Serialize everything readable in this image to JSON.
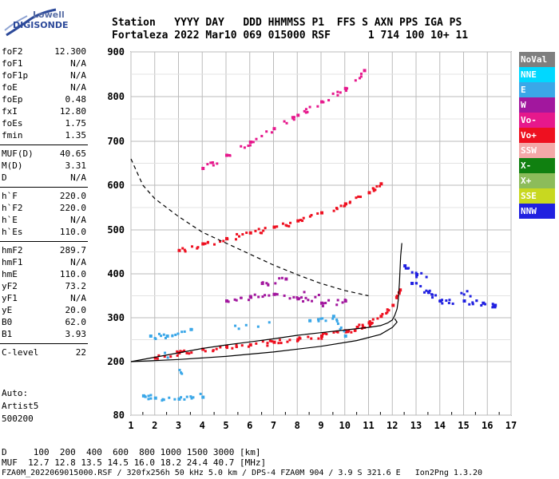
{
  "logo": {
    "line1": "Lowell",
    "line2": "DIGISONDE"
  },
  "header": {
    "line1": "Station   YYYY DAY   DDD HHMMSS P1  FFS S AXN PPS IGA PS",
    "line2": "Fortaleza 2022 Mar10 069 015000 RSF      1 714 100 10+ 11"
  },
  "params": [
    {
      "key": "foF2",
      "value": "12.300"
    },
    {
      "key": "foF1",
      "value": "N/A"
    },
    {
      "key": "foF1p",
      "value": "N/A"
    },
    {
      "key": "foE",
      "value": "N/A"
    },
    {
      "key": "foEp",
      "value": "0.48"
    },
    {
      "key": "fxI",
      "value": "12.80"
    },
    {
      "key": "foEs",
      "value": "1.75"
    },
    {
      "key": "fmin",
      "value": "1.35"
    },
    {
      "key": "MUF(D)",
      "value": "40.65"
    },
    {
      "key": "M(D)",
      "value": "3.31"
    },
    {
      "key": "D",
      "value": "N/A"
    },
    {
      "key": "h`F",
      "value": "220.0"
    },
    {
      "key": "h`F2",
      "value": "220.0"
    },
    {
      "key": "h`E",
      "value": "N/A"
    },
    {
      "key": "h`Es",
      "value": "110.0"
    },
    {
      "key": "hmF2",
      "value": "289.7"
    },
    {
      "key": "hmF1",
      "value": "N/A"
    },
    {
      "key": "hmE",
      "value": "110.0"
    },
    {
      "key": "yF2",
      "value": "73.2"
    },
    {
      "key": "yF1",
      "value": "N/A"
    },
    {
      "key": "yE",
      "value": "20.0"
    },
    {
      "key": "B0",
      "value": "62.0"
    },
    {
      "key": "B1",
      "value": "3.93"
    },
    {
      "key": "C-level",
      "value": "22"
    }
  ],
  "auto": {
    "line1": "Auto:",
    "line2": "Artist5",
    "line3": "500200"
  },
  "legend": [
    {
      "label": "NoVal",
      "bg": "#7f7f7f",
      "fg": "#ffffff"
    },
    {
      "label": "NNE",
      "bg": "#00d8ff",
      "fg": "#ffffff"
    },
    {
      "label": "E",
      "bg": "#3aa7e8",
      "fg": "#ffffff"
    },
    {
      "label": "W",
      "bg": "#a2179e",
      "fg": "#ffffff"
    },
    {
      "label": "Vo-",
      "bg": "#e6188c",
      "fg": "#ffffff"
    },
    {
      "label": "Vo+",
      "bg": "#ee1020",
      "fg": "#ffffff"
    },
    {
      "label": "SSW",
      "bg": "#f4a8a8",
      "fg": "#ffffff"
    },
    {
      "label": "X-",
      "bg": "#108010",
      "fg": "#ffffff"
    },
    {
      "label": "X+",
      "bg": "#8cbc5a",
      "fg": "#ffffff"
    },
    {
      "label": "SSE",
      "bg": "#c8d820",
      "fg": "#ffffff"
    },
    {
      "label": "NNW",
      "bg": "#2020e0",
      "fg": "#ffffff"
    }
  ],
  "footer": {
    "line1": "D     100  200  400  600  800 1000 1500 3000 [km]",
    "line2": "MUF  12.7 12.8 13.5 14.5 16.0 18.2 24.4 40.7 [MHz]",
    "line3": "FZA0M_2022069015000.RSF / 320fx256h 50 kHz 5.0 km / DPS-4 FZA0M 904 / 3.9 S 321.6 E   Ion2Png 1.3.20"
  },
  "chart_data": {
    "type": "scatter",
    "xlabel": "",
    "ylabel": "",
    "xlim": [
      1,
      17
    ],
    "ylim": [
      80,
      900
    ],
    "x_ticks": [
      1,
      2,
      3,
      4,
      5,
      6,
      7,
      8,
      9,
      10,
      11,
      12,
      13,
      14,
      15,
      16,
      17
    ],
    "y_ticks": [
      80,
      200,
      300,
      400,
      500,
      600,
      700,
      800,
      900
    ],
    "grid": true,
    "series": [
      {
        "name": "Vo+",
        "color": "#ee1020",
        "points": [
          [
            2.0,
            210
          ],
          [
            3.0,
            222
          ],
          [
            4.0,
            230
          ],
          [
            5.0,
            236
          ],
          [
            6.0,
            240
          ],
          [
            7.0,
            246
          ],
          [
            8.0,
            252
          ],
          [
            9.0,
            260
          ],
          [
            10.0,
            272
          ],
          [
            10.5,
            280
          ],
          [
            11.0,
            290
          ],
          [
            11.5,
            305
          ],
          [
            12.0,
            330
          ],
          [
            12.3,
            365
          ]
        ]
      },
      {
        "name": "Vo+ 2F",
        "color": "#ee1020",
        "points": [
          [
            3.0,
            455
          ],
          [
            4.0,
            470
          ],
          [
            5.0,
            482
          ],
          [
            6.0,
            495
          ],
          [
            7.0,
            508
          ],
          [
            8.0,
            522
          ],
          [
            9.0,
            540
          ],
          [
            10.0,
            560
          ],
          [
            11.0,
            585
          ],
          [
            11.5,
            605
          ]
        ]
      },
      {
        "name": "Vo+ 3F",
        "color": "#e6188c",
        "points": [
          [
            4.0,
            640
          ],
          [
            5.0,
            670
          ],
          [
            6.0,
            700
          ],
          [
            7.0,
            730
          ],
          [
            8.0,
            760
          ],
          [
            9.0,
            790
          ],
          [
            10.0,
            820
          ],
          [
            10.8,
            860
          ]
        ]
      },
      {
        "name": "W",
        "color": "#a2179e",
        "points": [
          [
            5.0,
            340
          ],
          [
            6.0,
            350
          ],
          [
            7.0,
            355
          ],
          [
            8.0,
            345
          ],
          [
            9.0,
            335
          ],
          [
            10.0,
            340
          ],
          [
            6.5,
            380
          ],
          [
            7.5,
            390
          ]
        ]
      },
      {
        "name": "NNW",
        "color": "#2020e0",
        "points": [
          [
            12.8,
            380
          ],
          [
            13.5,
            360
          ],
          [
            14.0,
            340
          ],
          [
            15.0,
            340
          ],
          [
            15.8,
            335
          ],
          [
            16.3,
            330
          ],
          [
            12.5,
            420
          ],
          [
            13.0,
            400
          ]
        ]
      },
      {
        "name": "E",
        "color": "#3aa7e8",
        "points": [
          [
            1.5,
            125
          ],
          [
            2.0,
            120
          ],
          [
            3.0,
            118
          ],
          [
            4.0,
            122
          ],
          [
            1.8,
            260
          ],
          [
            2.5,
            260
          ],
          [
            3.5,
            275
          ],
          [
            8.5,
            295
          ],
          [
            9.5,
            305
          ],
          [
            10.0,
            260
          ]
        ]
      }
    ],
    "reference_lines": [
      {
        "name": "model-profile",
        "style": "solid",
        "color": "#000000",
        "points": [
          [
            1.0,
            200
          ],
          [
            2.0,
            210
          ],
          [
            3.0,
            220
          ],
          [
            4.0,
            230
          ],
          [
            5.0,
            238
          ],
          [
            6.0,
            245
          ],
          [
            7.0,
            252
          ],
          [
            8.0,
            260
          ],
          [
            9.0,
            266
          ],
          [
            10.0,
            272
          ],
          [
            11.0,
            278
          ],
          [
            11.5,
            282
          ],
          [
            11.8,
            288
          ],
          [
            12.0,
            295
          ],
          [
            12.1,
            305
          ],
          [
            12.2,
            320
          ],
          [
            12.25,
            340
          ],
          [
            12.3,
            380
          ],
          [
            12.35,
            440
          ],
          [
            12.4,
            470
          ]
        ]
      },
      {
        "name": "model-profile-lower",
        "style": "solid",
        "color": "#000000",
        "points": [
          [
            1.0,
            200
          ],
          [
            3.0,
            205
          ],
          [
            5.0,
            212
          ],
          [
            7.0,
            222
          ],
          [
            9.0,
            235
          ],
          [
            10.5,
            248
          ],
          [
            11.5,
            262
          ],
          [
            12.0,
            278
          ],
          [
            12.2,
            290
          ],
          [
            12.1,
            298
          ]
        ]
      },
      {
        "name": "MUF-curve",
        "style": "dashed",
        "color": "#000000",
        "points": [
          [
            1.0,
            660
          ],
          [
            1.5,
            600
          ],
          [
            2.0,
            570
          ],
          [
            3.0,
            530
          ],
          [
            4.0,
            495
          ],
          [
            5.0,
            470
          ],
          [
            6.0,
            445
          ],
          [
            7.0,
            420
          ],
          [
            8.0,
            398
          ],
          [
            9.0,
            378
          ],
          [
            10.0,
            362
          ],
          [
            11.0,
            350
          ]
        ]
      }
    ]
  }
}
